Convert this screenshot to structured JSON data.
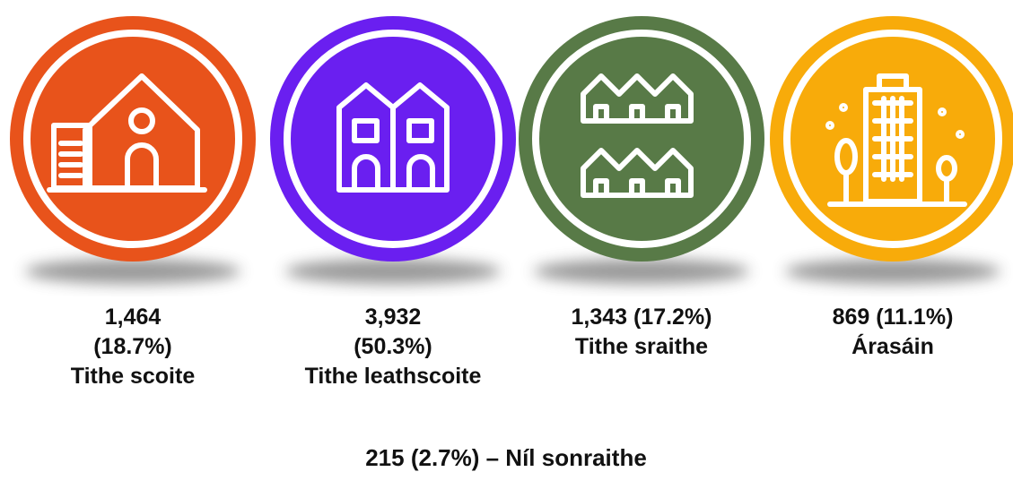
{
  "items": [
    {
      "lines": [
        "1,464",
        "(18.7%)",
        "Tithe scoite"
      ],
      "color": "#e8531b"
    },
    {
      "lines": [
        "3,932",
        "(50.3%)",
        "Tithe leathscoite"
      ],
      "color": "#6a1ff0"
    },
    {
      "lines": [
        "1,343 (17.2%)",
        "Tithe sraithe"
      ],
      "color": "#587a47"
    },
    {
      "lines": [
        "869 (11.1%)",
        "Árasáin"
      ],
      "color": "#f8ab0a"
    }
  ],
  "footer": "215 (2.7%) – Níl sonraithe"
}
